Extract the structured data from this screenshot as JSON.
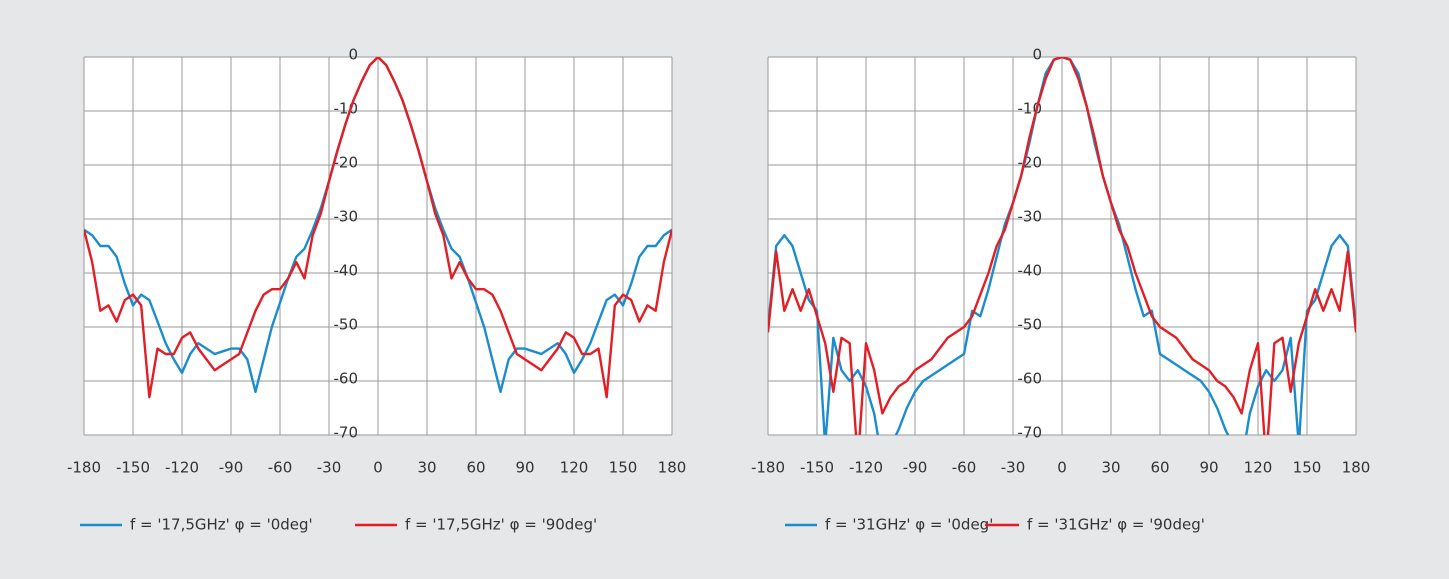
{
  "chart_data": [
    {
      "type": "line",
      "x": [
        -180,
        -175,
        -170,
        -165,
        -160,
        -155,
        -150,
        -145,
        -140,
        -135,
        -130,
        -125,
        -120,
        -115,
        -110,
        -105,
        -100,
        -95,
        -90,
        -85,
        -80,
        -75,
        -70,
        -65,
        -60,
        -55,
        -50,
        -45,
        -40,
        -35,
        -30,
        -25,
        -20,
        -15,
        -10,
        -5,
        0,
        5,
        10,
        15,
        20,
        25,
        30,
        35,
        40,
        45,
        50,
        55,
        60,
        65,
        70,
        75,
        80,
        85,
        90,
        95,
        100,
        105,
        110,
        115,
        120,
        125,
        130,
        135,
        140,
        145,
        150,
        155,
        160,
        165,
        170,
        175,
        180
      ],
      "xlim": [
        -180,
        180
      ],
      "xticks": [
        -180,
        -150,
        -120,
        -90,
        -60,
        -30,
        0,
        30,
        60,
        90,
        120,
        150,
        180
      ],
      "ylim": [
        -70,
        0
      ],
      "yticks": [
        0,
        -10,
        -20,
        -30,
        -40,
        -50,
        -60,
        -70
      ],
      "grid": true,
      "series": [
        {
          "name": "f = '17,5GHz' φ = '0deg'",
          "color": "#1b8dcf",
          "values": [
            -32,
            -33,
            -35,
            -35,
            -37,
            -42,
            -46,
            -44,
            -45,
            -49,
            -53,
            -56,
            -58.5,
            -55,
            -53,
            -54,
            -55,
            -54.5,
            -54,
            -54,
            -56,
            -62,
            -56,
            -50,
            -45.5,
            -41,
            -37,
            -35.5,
            -32,
            -28,
            -23,
            -17.5,
            -12.5,
            -8,
            -4.5,
            -1.5,
            0,
            -1.5,
            -4.5,
            -8,
            -12.5,
            -17.5,
            -23,
            -28,
            -32,
            -35.5,
            -37,
            -41,
            -45.5,
            -50,
            -56,
            -62,
            -56,
            -54,
            -54,
            -54.5,
            -55,
            -54,
            -53,
            -55,
            -58.5,
            -56,
            -53,
            -49,
            -45,
            -44,
            -46,
            -42,
            -37,
            -35,
            -35,
            -33,
            -32
          ]
        },
        {
          "name": "f = '17,5GHz' φ = '90deg'",
          "color": "#e31e24",
          "values": [
            -32,
            -38,
            -47,
            -46,
            -49,
            -45,
            -44,
            -46,
            -63,
            -54,
            -55,
            -55,
            -52,
            -51,
            -54,
            -56,
            -58,
            -57,
            -56,
            -55,
            -51,
            -47,
            -44,
            -43,
            -43,
            -41,
            -38,
            -41,
            -33,
            -29,
            -23,
            -17.5,
            -12.5,
            -8,
            -4.5,
            -1.5,
            0,
            -1.5,
            -4.5,
            -8,
            -12.5,
            -17.5,
            -23,
            -29,
            -33,
            -41,
            -38,
            -41,
            -43,
            -43,
            -44,
            -47,
            -51,
            -55,
            -56,
            -57,
            -58,
            -56,
            -54,
            -51,
            -52,
            -55,
            -55,
            -54,
            -63,
            -46,
            -44,
            -45,
            -49,
            -46,
            -47,
            -38,
            -32
          ]
        }
      ]
    },
    {
      "type": "line",
      "x": [
        -180,
        -175,
        -170,
        -165,
        -160,
        -155,
        -150,
        -145,
        -140,
        -135,
        -130,
        -125,
        -120,
        -115,
        -110,
        -105,
        -100,
        -95,
        -90,
        -85,
        -80,
        -75,
        -70,
        -65,
        -60,
        -55,
        -50,
        -45,
        -40,
        -35,
        -30,
        -25,
        -20,
        -15,
        -10,
        -5,
        0,
        5,
        10,
        15,
        20,
        25,
        30,
        35,
        40,
        45,
        50,
        55,
        60,
        65,
        70,
        75,
        80,
        85,
        90,
        95,
        100,
        105,
        110,
        115,
        120,
        125,
        130,
        135,
        140,
        145,
        150,
        155,
        160,
        165,
        170,
        175,
        180
      ],
      "xlim": [
        -180,
        180
      ],
      "xticks": [
        -180,
        -150,
        -120,
        -90,
        -60,
        -30,
        0,
        30,
        60,
        90,
        120,
        150,
        180
      ],
      "ylim": [
        -70,
        0
      ],
      "yticks": [
        0,
        -10,
        -20,
        -30,
        -40,
        -50,
        -60,
        -70
      ],
      "grid": true,
      "series": [
        {
          "name": "f = '31GHz' φ = '0deg'",
          "color": "#1b8dcf",
          "values": [
            -50,
            -35,
            -33,
            -35,
            -40,
            -45,
            -47,
            -72,
            -52,
            -58,
            -60,
            -58,
            -61,
            -66,
            -75,
            -72,
            -69,
            -65,
            -62,
            -60,
            -59,
            -58,
            -57,
            -56,
            -55,
            -47,
            -48,
            -43,
            -37,
            -31,
            -27,
            -22,
            -16,
            -9,
            -3,
            -0.5,
            0,
            -0.5,
            -3,
            -9,
            -16,
            -22,
            -27,
            -31,
            -37,
            -43,
            -48,
            -47,
            -55,
            -56,
            -57,
            -58,
            -59,
            -60,
            -62,
            -65,
            -69,
            -72,
            -75,
            -66,
            -61,
            -58,
            -60,
            -58,
            -52,
            -72,
            -47,
            -45,
            -40,
            -35,
            -33,
            -35,
            -50
          ]
        },
        {
          "name": "f = '31GHz' φ = '90deg'",
          "color": "#e31e24",
          "values": [
            -51,
            -36,
            -47,
            -43,
            -47,
            -43,
            -48,
            -53,
            -62,
            -52,
            -53,
            -75,
            -53,
            -58,
            -66,
            -63,
            -61,
            -60,
            -58,
            -57,
            -56,
            -54,
            -52,
            -51,
            -50,
            -48,
            -44,
            -40,
            -35,
            -32,
            -27,
            -22,
            -15,
            -9,
            -4,
            -0.5,
            0,
            -0.5,
            -4,
            -9,
            -15,
            -22,
            -27,
            -32,
            -35,
            -40,
            -44,
            -48,
            -50,
            -51,
            -52,
            -54,
            -56,
            -57,
            -58,
            -60,
            -61,
            -63,
            -66,
            -58,
            -53,
            -75,
            -53,
            -52,
            -62,
            -53,
            -48,
            -43,
            -47,
            -43,
            -47,
            -36,
            -51
          ]
        }
      ]
    }
  ]
}
